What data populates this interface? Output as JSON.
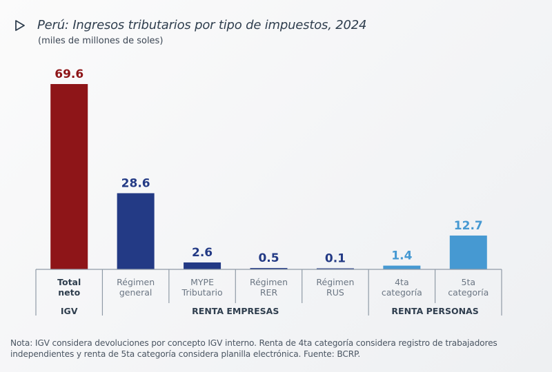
{
  "header": {
    "title": "Perú: Ingresos tributarios por tipo de impuestos, 2024",
    "subtitle": "(miles de millones de soles)",
    "icon": "play-triangle-outline-icon"
  },
  "chart_data": {
    "type": "bar",
    "title": "Perú: Ingresos tributarios por tipo de impuestos, 2024",
    "subtitle": "(miles de millones de soles)",
    "xlabel": "",
    "ylabel": "",
    "ylim": [
      0,
      69.6
    ],
    "grid": false,
    "legend": "none",
    "categories": [
      [
        "Total",
        "neto"
      ],
      [
        "Régimen",
        "general"
      ],
      [
        "MYPE",
        "Tributario"
      ],
      [
        "Régimen",
        "RER"
      ],
      [
        "Régimen",
        "RUS"
      ],
      [
        "4ta",
        "categoría"
      ],
      [
        "5ta",
        "categoría"
      ]
    ],
    "values": [
      69.6,
      28.6,
      2.6,
      0.5,
      0.1,
      1.4,
      12.7
    ],
    "value_labels": [
      "69.6",
      "28.6",
      "2.6",
      "0.5",
      "0.1",
      "1.4",
      "12.7"
    ],
    "groups": [
      {
        "name": "IGV",
        "start": 0,
        "end": 0,
        "color": "#8e1518"
      },
      {
        "name": "RENTA EMPRESAS",
        "start": 1,
        "end": 4,
        "color": "#233a85"
      },
      {
        "name": "RENTA PERSONAS",
        "start": 5,
        "end": 6,
        "color": "#4699d2"
      }
    ]
  },
  "note": "Nota: IGV considera devoluciones por concepto IGV interno. Renta de 4ta categoría considera registro de trabajadores independientes y renta de 5ta categoría considera planilla electrónica. Fuente: BCRP."
}
